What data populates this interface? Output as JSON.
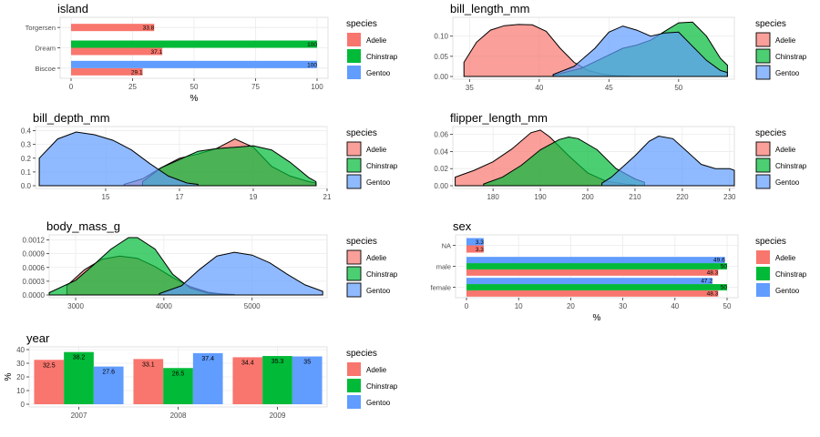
{
  "legend_title": "species",
  "species": [
    "Adelie",
    "Chinstrap",
    "Gentoo"
  ],
  "colors": {
    "Adelie": "#F8766D",
    "Chinstrap": "#00BA38",
    "Gentoo": "#619CFF"
  },
  "chart_data": [
    {
      "id": "island",
      "type": "bar",
      "orientation": "horizontal",
      "title": "island",
      "xlabel": "%",
      "ylabel": "",
      "categories": [
        "Biscoe",
        "Dream",
        "Torgersen"
      ],
      "xlim": [
        0,
        100
      ],
      "xticks": [
        0,
        25,
        50,
        75,
        100
      ],
      "series": [
        {
          "name": "Adelie",
          "values": [
            29.1,
            37.1,
            33.8
          ]
        },
        {
          "name": "Chinstrap",
          "values": [
            null,
            100,
            null
          ]
        },
        {
          "name": "Gentoo",
          "values": [
            100,
            null,
            null
          ]
        }
      ],
      "data_labels": true
    },
    {
      "id": "bill_length_mm",
      "type": "area",
      "title": "bill_length_mm",
      "xlabel": "",
      "ylabel": "",
      "xlim": [
        33.8,
        54
      ],
      "ylim": [
        0,
        0.14
      ],
      "xticks": [
        35,
        40,
        45,
        50
      ],
      "yticks": [
        0,
        0.05,
        0.1
      ],
      "series": [
        {
          "name": "Adelie",
          "x": [
            34.6,
            35.5,
            36.5,
            37.5,
            38.5,
            39.5,
            40.5,
            41.5,
            42.5,
            43.5,
            44.5,
            45.5,
            46.5
          ],
          "y": [
            0.035,
            0.085,
            0.115,
            0.126,
            0.129,
            0.128,
            0.112,
            0.07,
            0.035,
            0.015,
            0.006,
            0.002,
            0.001
          ]
        },
        {
          "name": "Chinstrap",
          "x": [
            41,
            43,
            44.5,
            46,
            47,
            48,
            49,
            50,
            51,
            52,
            53,
            53.5
          ],
          "y": [
            0.003,
            0.02,
            0.045,
            0.07,
            0.078,
            0.09,
            0.112,
            0.133,
            0.135,
            0.1,
            0.045,
            0.028
          ]
        },
        {
          "name": "Gentoo",
          "x": [
            41,
            42.5,
            44,
            45,
            46,
            47,
            48,
            49,
            50,
            51,
            52,
            53,
            53.5
          ],
          "y": [
            0.005,
            0.025,
            0.07,
            0.11,
            0.125,
            0.115,
            0.1,
            0.108,
            0.11,
            0.075,
            0.04,
            0.015,
            0.01
          ]
        }
      ]
    },
    {
      "id": "bill_depth_mm",
      "type": "area",
      "title": "bill_depth_mm",
      "xlabel": "",
      "ylabel": "",
      "xlim": [
        13.1,
        21
      ],
      "ylim": [
        0,
        0.41
      ],
      "xticks": [
        15,
        17,
        19,
        21
      ],
      "yticks": [
        0,
        0.1,
        0.2,
        0.3,
        0.4
      ],
      "series": [
        {
          "name": "Adelie",
          "x": [
            15.5,
            16,
            16.5,
            17,
            17.5,
            18,
            18.5,
            19,
            19.5,
            20,
            20.5,
            20.7
          ],
          "y": [
            0.01,
            0.05,
            0.13,
            0.2,
            0.23,
            0.27,
            0.34,
            0.28,
            0.14,
            0.07,
            0.03,
            0.02
          ]
        },
        {
          "name": "Chinstrap",
          "x": [
            16,
            16.5,
            17,
            17.5,
            18,
            18.5,
            19,
            19.5,
            20,
            20.5,
            20.7
          ],
          "y": [
            0.03,
            0.13,
            0.19,
            0.25,
            0.27,
            0.28,
            0.29,
            0.26,
            0.17,
            0.06,
            0.03
          ]
        },
        {
          "name": "Gentoo",
          "x": [
            13.2,
            13.7,
            14.2,
            14.7,
            15.2,
            15.7,
            16.2,
            16.7,
            17.2,
            17.5
          ],
          "y": [
            0.2,
            0.34,
            0.39,
            0.37,
            0.33,
            0.26,
            0.16,
            0.07,
            0.02,
            0.01
          ]
        }
      ]
    },
    {
      "id": "flipper_length_mm",
      "type": "area",
      "title": "flipper_length_mm",
      "xlabel": "",
      "ylabel": "",
      "xlim": [
        171.5,
        231
      ],
      "ylim": [
        0,
        0.066
      ],
      "xticks": [
        180,
        190,
        200,
        210,
        220,
        230
      ],
      "yticks": [
        0,
        0.02,
        0.04,
        0.06
      ],
      "series": [
        {
          "name": "Adelie",
          "x": [
            172,
            176,
            180,
            184,
            188,
            190,
            192,
            196,
            200,
            204,
            208,
            210
          ],
          "y": [
            0.01,
            0.018,
            0.028,
            0.043,
            0.062,
            0.065,
            0.057,
            0.035,
            0.015,
            0.005,
            0.002,
            0.001
          ]
        },
        {
          "name": "Chinstrap",
          "x": [
            178,
            182,
            186,
            190,
            194,
            196,
            198,
            202,
            206,
            210,
            212
          ],
          "y": [
            0.002,
            0.01,
            0.024,
            0.042,
            0.054,
            0.057,
            0.055,
            0.042,
            0.02,
            0.008,
            0.004
          ]
        },
        {
          "name": "Gentoo",
          "x": [
            203,
            205,
            208,
            210,
            213,
            215,
            218,
            221,
            224,
            227,
            230,
            231
          ],
          "y": [
            0.003,
            0.01,
            0.025,
            0.035,
            0.052,
            0.058,
            0.055,
            0.04,
            0.025,
            0.02,
            0.02,
            0.018
          ]
        }
      ]
    },
    {
      "id": "body_mass_g",
      "type": "area",
      "title": "body_mass_g",
      "xlabel": "",
      "ylabel": "",
      "xlim": [
        2700,
        5850
      ],
      "ylim": [
        0,
        0.00125
      ],
      "xticks": [
        3000,
        4000,
        5000
      ],
      "yticks": [
        0,
        0.0003,
        0.0006,
        0.0009,
        0.0012
      ],
      "series": [
        {
          "name": "Adelie",
          "x": [
            2900,
            3100,
            3300,
            3500,
            3700,
            3900,
            4100,
            4300,
            4500,
            4700
          ],
          "y": [
            0.0002,
            0.00055,
            0.00078,
            0.00085,
            0.0008,
            0.00062,
            0.00038,
            0.00018,
            6e-05,
            1e-05
          ]
        },
        {
          "name": "Chinstrap",
          "x": [
            2700,
            3000,
            3200,
            3400,
            3600,
            3700,
            3900,
            4100,
            4300,
            4500,
            4800
          ],
          "y": [
            5e-05,
            0.00032,
            0.00065,
            0.001,
            0.00125,
            0.00125,
            0.001,
            0.00045,
            0.00015,
            4e-05,
            1e-05
          ]
        },
        {
          "name": "Gentoo",
          "x": [
            3950,
            4200,
            4400,
            4600,
            4800,
            5000,
            5200,
            5400,
            5600,
            5800
          ],
          "y": [
            3e-05,
            0.0002,
            0.00055,
            0.00085,
            0.00093,
            0.00087,
            0.0007,
            0.00045,
            0.00022,
            8e-05
          ]
        }
      ]
    },
    {
      "id": "sex",
      "type": "bar",
      "orientation": "horizontal",
      "title": "sex",
      "xlabel": "%",
      "ylabel": "",
      "categories": [
        "female",
        "male",
        "NA"
      ],
      "xlim": [
        0,
        50
      ],
      "xticks": [
        0,
        10,
        20,
        30,
        40,
        50
      ],
      "series": [
        {
          "name": "Adelie",
          "values": [
            48.3,
            48.3,
            3.3
          ]
        },
        {
          "name": "Chinstrap",
          "values": [
            50,
            50,
            null
          ]
        },
        {
          "name": "Gentoo",
          "values": [
            47.2,
            49.6,
            3.3
          ]
        }
      ],
      "data_labels": true
    },
    {
      "id": "year",
      "type": "bar",
      "orientation": "vertical",
      "title": "year",
      "xlabel": "",
      "ylabel": "%",
      "categories": [
        "2007",
        "2008",
        "2009"
      ],
      "ylim": [
        0,
        40
      ],
      "yticks": [
        0,
        10,
        20,
        30,
        40
      ],
      "series": [
        {
          "name": "Adelie",
          "values": [
            32.5,
            33.1,
            34.4
          ]
        },
        {
          "name": "Chinstrap",
          "values": [
            38.2,
            26.5,
            35.3
          ]
        },
        {
          "name": "Gentoo",
          "values": [
            27.6,
            37.4,
            35
          ]
        }
      ],
      "data_labels": true
    }
  ]
}
